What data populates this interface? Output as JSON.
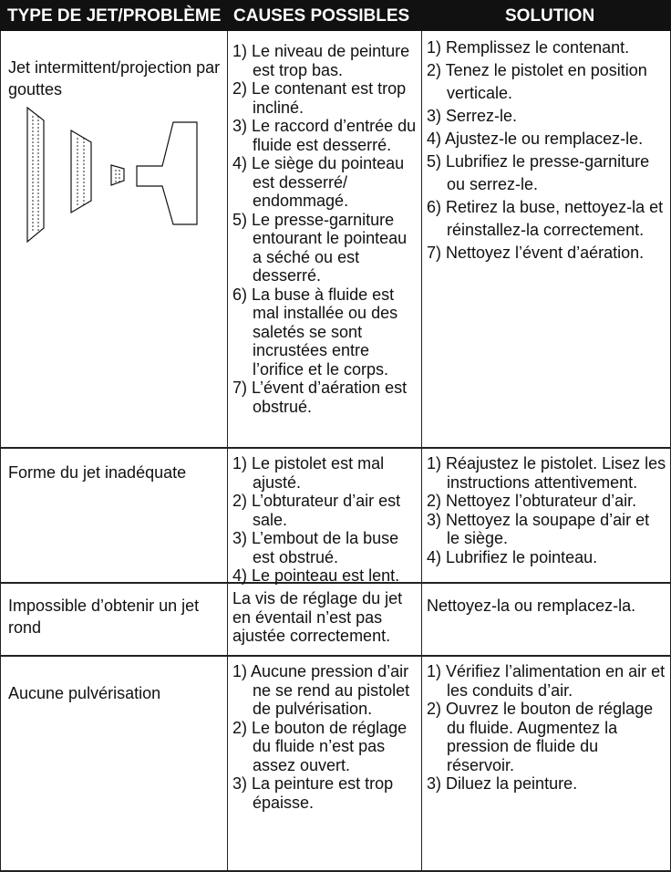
{
  "header": {
    "columns": [
      "TYPE DE JET/PROBLÈME",
      "CAUSES POSSIBLES",
      "SOLUTION"
    ]
  },
  "table": {
    "rows": [
      {
        "problem": "Jet intermittent/projection par gouttes",
        "causes": [
          "1) Le niveau de peinture est trop bas.",
          "2) Le contenant est trop incliné.",
          "3) Le raccord d’entrée du fluide est desserré.",
          "4) Le siège du pointeau est desserré/ endommagé.",
          "5) Le presse-garniture entourant le pointeau a séché ou est desserré.",
          "6) La buse à fluide est mal installée ou des saletés se sont incrustées entre l’orifice et le corps.",
          "7) L’évent d’aération est obstrué."
        ],
        "solutions": [
          "1) Remplissez le contenant.",
          "2) Tenez le pistolet en position verticale.",
          "3) Serrez-le.",
          "4) Ajustez-le ou remplacez-le.",
          "5) Lubrifiez le presse-garniture ou serrez-le.",
          "6) Retirez la buse, nettoyez-la et réinstallez-la correctement.",
          "7) Nettoyez l’évent d’aération."
        ]
      },
      {
        "problem": "Forme du jet inadéquate",
        "causes": [
          "1) Le pistolet est mal ajusté.",
          "2) L’obturateur d’air est sale.",
          "3) L’embout de la buse est obstrué.",
          "4) Le pointeau est lent."
        ],
        "solutions": [
          "1) Réajustez le pistolet. Lisez les instructions attentivement.",
          "2) Nettoyez l’obturateur d’air.",
          "3) Nettoyez la soupape d’air et le siège.",
          "4) Lubrifiez le pointeau."
        ]
      },
      {
        "problem": "Impossible d’obtenir un jet rond",
        "causes": [
          "La vis de réglage du jet en éventail n’est pas ajustée correctement."
        ],
        "solutions": [
          "Nettoyez-la ou remplacez-la."
        ]
      },
      {
        "problem": "Aucune pulvérisation",
        "causes": [
          "1) Aucune pression d’air ne se rend au pistolet de pulvérisation.",
          "2) Le bouton de réglage du fluide n’est pas assez ouvert.",
          "3) La peinture est trop épaisse."
        ],
        "solutions": [
          "1) Vérifiez l’alimentation en air et les conduits d’air.",
          "2) Ouvrez le bouton de réglage du fluide. Augmentez la pression de fluide du réservoir.",
          "3) Diluez la peinture."
        ]
      }
    ]
  }
}
